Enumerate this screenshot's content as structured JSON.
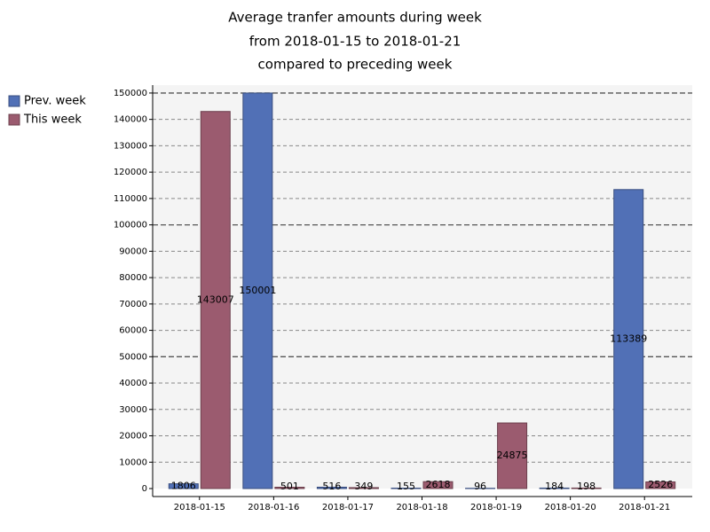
{
  "chart_data": {
    "type": "bar",
    "title": "Average tranfer amounts during week",
    "subtitle": [
      "from 2018-01-15 to 2018-01-21",
      "compared to preceding week"
    ],
    "categories": [
      "2018-01-15",
      "2018-01-16",
      "2018-01-17",
      "2018-01-18",
      "2018-01-19",
      "2018-01-20",
      "2018-01-21"
    ],
    "series": [
      {
        "name": "Prev. week",
        "color": "#5170b6",
        "values": [
          1806,
          150001,
          516,
          155,
          96,
          184,
          113389
        ]
      },
      {
        "name": "This week",
        "color": "#9b5b6f",
        "values": [
          143007,
          501,
          349,
          2618,
          24875,
          198,
          2526
        ]
      }
    ],
    "ylim": [
      0,
      153000
    ],
    "yticks": [
      0,
      10000,
      20000,
      30000,
      40000,
      50000,
      60000,
      70000,
      80000,
      90000,
      100000,
      110000,
      120000,
      130000,
      140000,
      150000
    ],
    "grid": true,
    "legend": "top-left"
  }
}
